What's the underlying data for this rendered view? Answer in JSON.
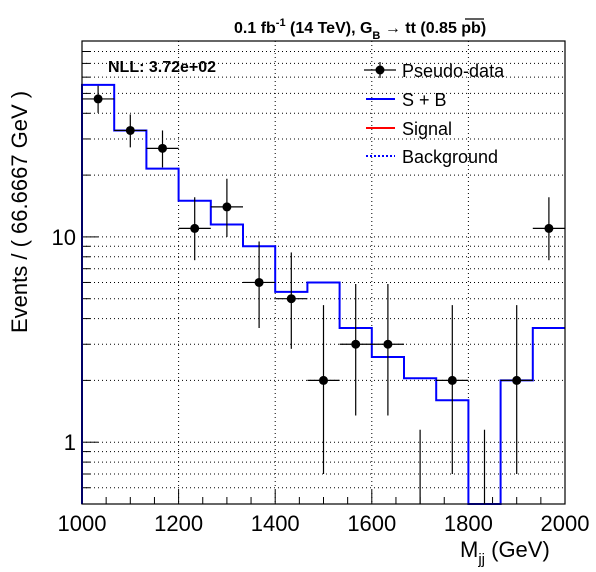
{
  "chart_data": {
    "type": "line",
    "title_parts": {
      "lumi": "0.1 fb",
      "lumi_exp": "-1",
      "energy": " (14 TeV), G",
      "g_sub": "B",
      "arrow": " → ",
      "ttbar": "tt",
      "xsec": " (0.85 pb)"
    },
    "annotation": "NLL: 3.72e+02",
    "xlabel_main": "M",
    "xlabel_sub": "jj",
    "xlabel_unit": " (GeV)",
    "ylabel": "Events / ( 66.6667 GeV )",
    "xlim": [
      1000,
      2000
    ],
    "ylim": [
      0.5,
      90
    ],
    "yscale": "log",
    "grid": true,
    "legend_position": "top-right",
    "x_tick_labels": [
      "1000",
      "1200",
      "1400",
      "1600",
      "1800",
      "2000"
    ],
    "x_ticks": [
      1000,
      1200,
      1400,
      1600,
      1800,
      2000
    ],
    "y_tick_labels": [
      "1",
      "10"
    ],
    "y_ticks": [
      1,
      10
    ],
    "legend": [
      {
        "label": "Pseudo-data",
        "style": "marker",
        "color": "#000000"
      },
      {
        "label": "S + B",
        "style": "solid",
        "color": "#0000ff"
      },
      {
        "label": "Signal",
        "style": "solid",
        "color": "#ff0000"
      },
      {
        "label": "Background",
        "style": "dotted",
        "color": "#0000ff"
      }
    ],
    "bin_edges": [
      1000,
      1066.67,
      1133.33,
      1200,
      1266.67,
      1333.33,
      1400,
      1466.67,
      1533.33,
      1600,
      1666.67,
      1733.33,
      1800,
      1866.67,
      1933.33,
      2000
    ],
    "sb_values": [
      55,
      33,
      21.5,
      15,
      11.5,
      9,
      5.4,
      6,
      3.6,
      2.6,
      2.05,
      1.6,
      0.08,
      2.0,
      3.6
    ],
    "pseudo_data": [
      {
        "x": 1033.33,
        "y": 47,
        "ylo": 40.2,
        "yhi": 54.5
      },
      {
        "x": 1100,
        "y": 33,
        "ylo": 27.3,
        "yhi": 39.5
      },
      {
        "x": 1166.67,
        "y": 27,
        "ylo": 21.8,
        "yhi": 33.0
      },
      {
        "x": 1233.33,
        "y": 11,
        "ylo": 7.7,
        "yhi": 15.6
      },
      {
        "x": 1300,
        "y": 14,
        "ylo": 10.0,
        "yhi": 19.2
      },
      {
        "x": 1366.67,
        "y": 6,
        "ylo": 3.6,
        "yhi": 9.5
      },
      {
        "x": 1433.33,
        "y": 5,
        "ylo": 2.85,
        "yhi": 8.4
      },
      {
        "x": 1500,
        "y": 2,
        "ylo": 0.7,
        "yhi": 4.65
      },
      {
        "x": 1566.67,
        "y": 3,
        "ylo": 1.35,
        "yhi": 5.9
      },
      {
        "x": 1633.33,
        "y": 3,
        "ylo": 1.35,
        "yhi": 5.9
      },
      {
        "x": 1700,
        "y": 0,
        "ylo": 0,
        "yhi": 1.15
      },
      {
        "x": 1766.67,
        "y": 2,
        "ylo": 0.7,
        "yhi": 4.65
      },
      {
        "x": 1833.33,
        "y": 0,
        "ylo": 0,
        "yhi": 1.15
      },
      {
        "x": 1900,
        "y": 2,
        "ylo": 0.7,
        "yhi": 4.65
      },
      {
        "x": 1966.67,
        "y": 11,
        "ylo": 7.7,
        "yhi": 15.6
      }
    ]
  }
}
